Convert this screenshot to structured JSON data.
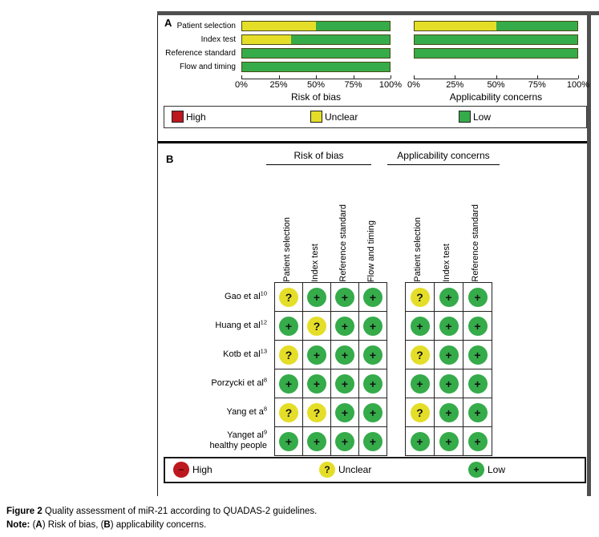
{
  "panel_a": {
    "label": "A",
    "legend": [
      {
        "key": "high",
        "label": "High",
        "color": "#bd171f"
      },
      {
        "key": "unclear",
        "label": "Unclear",
        "color": "#e5de29"
      },
      {
        "key": "low",
        "label": "Low",
        "color": "#35ab4a"
      }
    ],
    "chart_data": [
      {
        "type": "bar",
        "stacked": true,
        "xlabel": "Risk of bias",
        "categories": [
          "Patient selection",
          "Index test",
          "Reference standard",
          "Flow and timing"
        ],
        "series": [
          {
            "name": "High",
            "color": "#bd171f",
            "values": [
              0,
              0,
              0,
              0
            ]
          },
          {
            "name": "Unclear",
            "color": "#e5de29",
            "values": [
              50,
              33,
              0,
              0
            ]
          },
          {
            "name": "Low",
            "color": "#35ab4a",
            "values": [
              50,
              67,
              100,
              100
            ]
          }
        ],
        "xlim": [
          0,
          100
        ],
        "tick_labels": [
          "0%",
          "25%",
          "50%",
          "75%",
          "100%"
        ]
      },
      {
        "type": "bar",
        "stacked": true,
        "xlabel": "Applicability concerns",
        "categories": [
          "Patient selection",
          "Index test",
          "Reference standard"
        ],
        "series": [
          {
            "name": "High",
            "color": "#bd171f",
            "values": [
              0,
              0,
              0
            ]
          },
          {
            "name": "Unclear",
            "color": "#e5de29",
            "values": [
              50,
              0,
              0
            ]
          },
          {
            "name": "Low",
            "color": "#35ab4a",
            "values": [
              50,
              100,
              100
            ]
          }
        ],
        "xlim": [
          0,
          100
        ],
        "tick_labels": [
          "0%",
          "25%",
          "50%",
          "75%",
          "100%"
        ]
      }
    ]
  },
  "panel_b": {
    "label": "B",
    "group_headers": [
      "Risk of bias",
      "Applicability concerns"
    ],
    "risk_columns": [
      "Patient selection",
      "Index test",
      "Reference standard",
      "Flow and timing"
    ],
    "applicability_columns": [
      "Patient selection",
      "Index test",
      "Reference standard"
    ],
    "symbols": {
      "high": "−",
      "unclear": "?",
      "low": "+"
    },
    "colors": {
      "high": "#bd171f",
      "unclear": "#e5de29",
      "low": "#35ab4a"
    },
    "rows": [
      {
        "study": "Gao et al",
        "ref": "10",
        "risk": [
          "unclear",
          "low",
          "low",
          "low"
        ],
        "applicability": [
          "unclear",
          "low",
          "low"
        ]
      },
      {
        "study": "Huang et al",
        "ref": "12",
        "risk": [
          "low",
          "unclear",
          "low",
          "low"
        ],
        "applicability": [
          "low",
          "low",
          "low"
        ]
      },
      {
        "study": "Kotb et al",
        "ref": "13",
        "risk": [
          "unclear",
          "low",
          "low",
          "low"
        ],
        "applicability": [
          "unclear",
          "low",
          "low"
        ]
      },
      {
        "study": "Porzycki et al",
        "ref": "8",
        "risk": [
          "low",
          "low",
          "low",
          "low"
        ],
        "applicability": [
          "low",
          "low",
          "low"
        ]
      },
      {
        "study": "Yang et a",
        "ref": "8",
        "risk": [
          "unclear",
          "unclear",
          "low",
          "low"
        ],
        "applicability": [
          "unclear",
          "low",
          "low"
        ]
      },
      {
        "study": "Yanget al",
        "ref": "9",
        "study_line2": "healthy people",
        "risk": [
          "low",
          "low",
          "low",
          "low"
        ],
        "applicability": [
          "low",
          "low",
          "low"
        ]
      }
    ],
    "legend": [
      {
        "key": "high",
        "label": "High"
      },
      {
        "key": "unclear",
        "label": "Unclear"
      },
      {
        "key": "low",
        "label": "Low"
      }
    ]
  },
  "caption": {
    "line1": [
      {
        "text": "Figure 2",
        "bold": true
      },
      {
        "text": " Quality assessment of miR-21 according to QUADAS-2 guidelines.",
        "bold": false
      }
    ],
    "line2": [
      {
        "text": "Note:",
        "bold": true
      },
      {
        "text": " (",
        "bold": false
      },
      {
        "text": "A",
        "bold": true
      },
      {
        "text": ") Risk of bias, (",
        "bold": false
      },
      {
        "text": "B",
        "bold": true
      },
      {
        "text": ") applicability concerns.",
        "bold": false
      }
    ]
  }
}
